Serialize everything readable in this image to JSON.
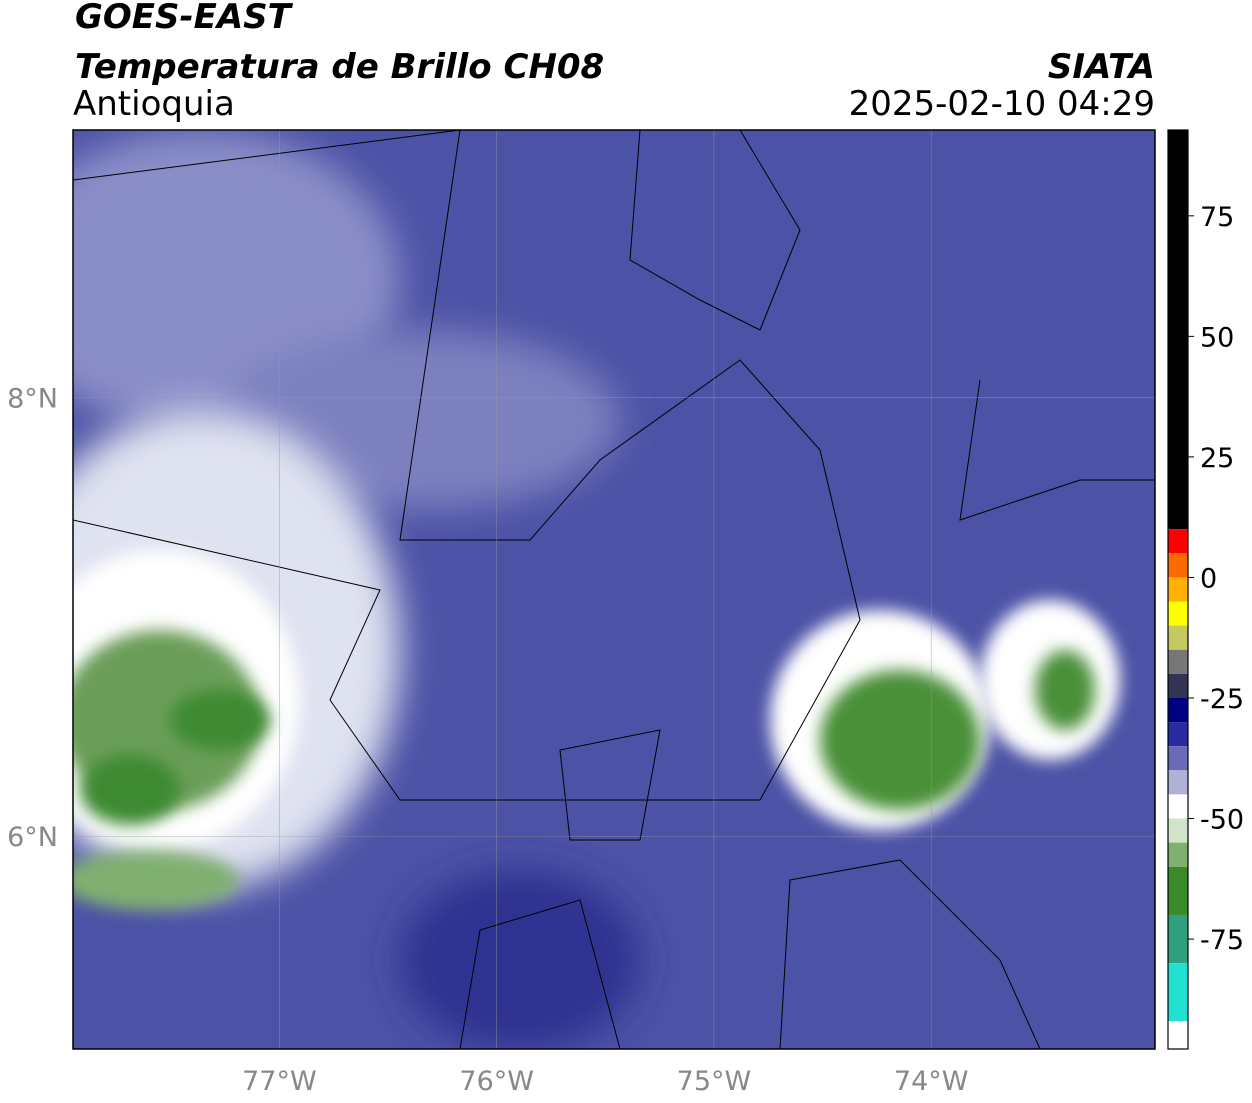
{
  "header": {
    "title": "GOES-EAST",
    "subtitle": "Temperatura de Brillo CH08",
    "region": "Antioquia",
    "source": "SIATA",
    "timestamp": "2025-02-10 04:29"
  },
  "map": {
    "xlim": [
      -77.95,
      -72.97
    ],
    "ylim": [
      5.03,
      9.22
    ],
    "xticks": [
      {
        "value": -77,
        "label": "77°W"
      },
      {
        "value": -76,
        "label": "76°W"
      },
      {
        "value": -75,
        "label": "75°W"
      },
      {
        "value": -74,
        "label": "74°W"
      }
    ],
    "yticks": [
      {
        "value": 8,
        "label": "8°N"
      },
      {
        "value": 6,
        "label": "6°N"
      }
    ]
  },
  "colorbar": {
    "lim": [
      -97.8,
      92.8
    ],
    "ticks": [
      75,
      50,
      25,
      0,
      -25,
      -50,
      -75
    ],
    "stops": [
      {
        "value": 92.8,
        "color": "#000000"
      },
      {
        "value": 10,
        "color": "#ff0000"
      },
      {
        "value": 5,
        "color": "#ff6a00"
      },
      {
        "value": 0,
        "color": "#ffb000"
      },
      {
        "value": -5,
        "color": "#ffff00"
      },
      {
        "value": -10,
        "color": "#c8c860"
      },
      {
        "value": -15,
        "color": "#777777"
      },
      {
        "value": -20,
        "color": "#333355"
      },
      {
        "value": -25,
        "color": "#000080"
      },
      {
        "value": -30,
        "color": "#2a2aa0"
      },
      {
        "value": -35,
        "color": "#6a6ab8"
      },
      {
        "value": -40,
        "color": "#b0b0d8"
      },
      {
        "value": -45,
        "color": "#ffffff"
      },
      {
        "value": -50,
        "color": "#d0e4c8"
      },
      {
        "value": -55,
        "color": "#80b070"
      },
      {
        "value": -60,
        "color": "#3a8a2a"
      },
      {
        "value": -70,
        "color": "#30a080"
      },
      {
        "value": -80,
        "color": "#20e0d0"
      },
      {
        "value": -92,
        "color": "#ffffff"
      }
    ]
  }
}
